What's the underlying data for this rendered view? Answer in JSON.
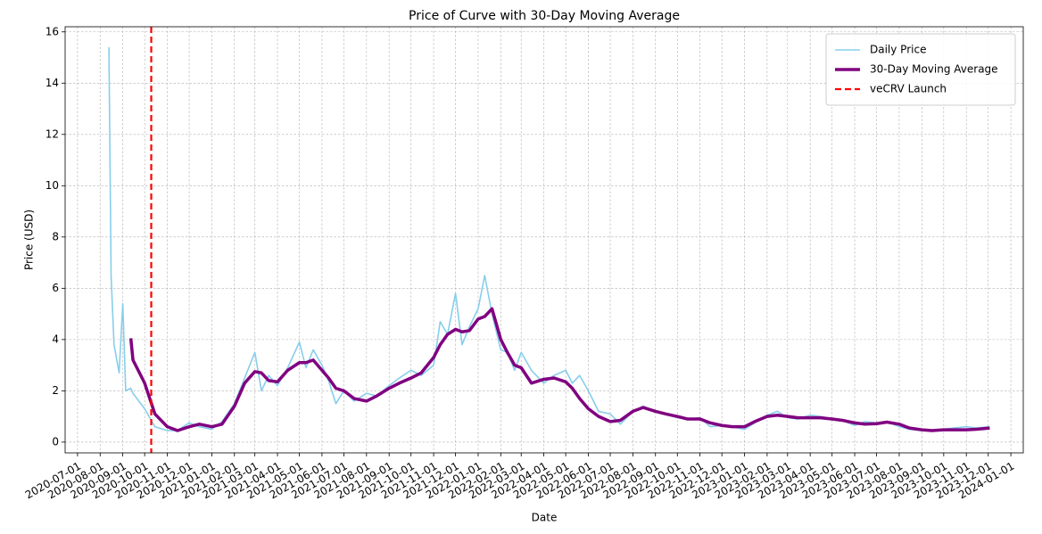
{
  "chart_data": {
    "type": "line",
    "title": "Price of Curve with 30-Day Moving Average",
    "xlabel": "Date",
    "ylabel": "Price (USD)",
    "x": [
      "2020-08-13",
      "2020-08-16",
      "2020-08-20",
      "2020-08-27",
      "2020-09-01",
      "2020-09-05",
      "2020-09-12",
      "2020-09-15",
      "2020-10-01",
      "2020-10-15",
      "2020-11-01",
      "2020-11-15",
      "2020-12-01",
      "2020-12-15",
      "2021-01-01",
      "2021-01-15",
      "2021-02-01",
      "2021-02-15",
      "2021-03-01",
      "2021-03-10",
      "2021-03-20",
      "2021-04-01",
      "2021-04-15",
      "2021-05-01",
      "2021-05-10",
      "2021-05-20",
      "2021-06-01",
      "2021-06-10",
      "2021-06-20",
      "2021-07-01",
      "2021-07-15",
      "2021-08-01",
      "2021-08-15",
      "2021-09-01",
      "2021-09-15",
      "2021-10-01",
      "2021-10-15",
      "2021-11-01",
      "2021-11-10",
      "2021-11-20",
      "2021-12-01",
      "2021-12-10",
      "2021-12-20",
      "2022-01-01",
      "2022-01-10",
      "2022-01-20",
      "2022-02-01",
      "2022-02-10",
      "2022-02-20",
      "2022-03-01",
      "2022-03-15",
      "2022-04-01",
      "2022-04-15",
      "2022-05-01",
      "2022-05-10",
      "2022-05-20",
      "2022-06-01",
      "2022-06-15",
      "2022-07-01",
      "2022-07-15",
      "2022-08-01",
      "2022-08-15",
      "2022-09-01",
      "2022-09-15",
      "2022-10-01",
      "2022-10-15",
      "2022-11-01",
      "2022-11-15",
      "2022-12-01",
      "2022-12-15",
      "2023-01-01",
      "2023-01-15",
      "2023-02-01",
      "2023-02-15",
      "2023-03-01",
      "2023-03-15",
      "2023-04-01",
      "2023-04-15",
      "2023-05-01",
      "2023-05-15",
      "2023-06-01",
      "2023-06-15",
      "2023-07-01",
      "2023-07-15",
      "2023-08-01",
      "2023-08-15",
      "2023-09-01",
      "2023-09-15",
      "2023-10-01",
      "2023-10-15",
      "2023-11-01",
      "2023-11-15",
      "2023-12-03"
    ],
    "series": [
      {
        "name": "Daily Price",
        "color": "#87ceeb",
        "width": 1.6,
        "values": [
          15.4,
          6.5,
          3.8,
          2.7,
          5.4,
          2.0,
          2.1,
          1.9,
          1.3,
          0.6,
          0.45,
          0.45,
          0.75,
          0.6,
          0.5,
          0.8,
          1.5,
          2.5,
          3.5,
          2.0,
          2.6,
          2.2,
          2.9,
          3.9,
          2.9,
          3.6,
          3.0,
          2.4,
          1.5,
          2.0,
          1.6,
          1.9,
          1.8,
          2.2,
          2.5,
          2.8,
          2.6,
          3.0,
          4.7,
          4.2,
          5.8,
          3.8,
          4.5,
          5.2,
          6.5,
          5.0,
          3.6,
          3.5,
          2.8,
          3.5,
          2.8,
          2.3,
          2.6,
          2.8,
          2.3,
          2.6,
          2.0,
          1.2,
          1.1,
          0.7,
          1.2,
          1.4,
          1.2,
          1.1,
          0.95,
          0.9,
          0.95,
          0.6,
          0.65,
          0.6,
          0.5,
          0.75,
          1.05,
          1.2,
          0.95,
          0.9,
          1.05,
          1.0,
          0.9,
          0.85,
          0.65,
          0.8,
          0.75,
          0.8,
          0.6,
          0.5,
          0.45,
          0.45,
          0.5,
          0.55,
          0.6,
          0.55,
          0.6
        ]
      },
      {
        "name": "30-Day Moving Average",
        "color": "#800080",
        "width": 3.5,
        "values": [
          null,
          null,
          null,
          null,
          null,
          null,
          4.05,
          3.2,
          2.3,
          1.1,
          0.6,
          0.45,
          0.6,
          0.7,
          0.6,
          0.7,
          1.4,
          2.3,
          2.75,
          2.7,
          2.4,
          2.35,
          2.8,
          3.1,
          3.1,
          3.2,
          2.8,
          2.5,
          2.1,
          2.0,
          1.7,
          1.6,
          1.8,
          2.1,
          2.3,
          2.5,
          2.7,
          3.3,
          3.8,
          4.2,
          4.4,
          4.3,
          4.35,
          4.8,
          4.9,
          5.2,
          4.0,
          3.5,
          3.0,
          2.9,
          2.3,
          2.45,
          2.5,
          2.35,
          2.1,
          1.7,
          1.3,
          1.0,
          0.8,
          0.85,
          1.2,
          1.35,
          1.2,
          1.1,
          1.0,
          0.9,
          0.9,
          0.75,
          0.65,
          0.6,
          0.6,
          0.8,
          1.0,
          1.05,
          1.0,
          0.95,
          0.95,
          0.95,
          0.9,
          0.85,
          0.75,
          0.7,
          0.72,
          0.78,
          0.7,
          0.55,
          0.48,
          0.45,
          0.48,
          0.48,
          0.48,
          0.5,
          0.55
        ]
      }
    ],
    "vlines": [
      {
        "x": "2020-10-10",
        "label": "veCRV Launch",
        "color": "#ff0000"
      }
    ],
    "xlim": [
      "2020-06-14",
      "2024-01-18"
    ],
    "xticks": [
      "2020-07-01",
      "2020-08-01",
      "2020-09-01",
      "2020-10-01",
      "2020-11-01",
      "2020-12-01",
      "2021-01-01",
      "2021-02-01",
      "2021-03-01",
      "2021-04-01",
      "2021-05-01",
      "2021-06-01",
      "2021-07-01",
      "2021-08-01",
      "2021-09-01",
      "2021-10-01",
      "2021-11-01",
      "2021-12-01",
      "2022-01-01",
      "2022-02-01",
      "2022-03-01",
      "2022-04-01",
      "2022-05-01",
      "2022-06-01",
      "2022-07-01",
      "2022-08-01",
      "2022-09-01",
      "2022-10-01",
      "2022-11-01",
      "2022-12-01",
      "2023-01-01",
      "2023-02-01",
      "2023-03-01",
      "2023-04-01",
      "2023-05-01",
      "2023-06-01",
      "2023-07-01",
      "2023-08-01",
      "2023-09-01",
      "2023-10-01",
      "2023-11-01",
      "2023-12-01",
      "2024-01-01"
    ],
    "ylim": [
      -0.42,
      16.2
    ],
    "yticks": [
      0,
      2,
      4,
      6,
      8,
      10,
      12,
      14,
      16
    ],
    "grid": true,
    "legend": "upper right"
  }
}
